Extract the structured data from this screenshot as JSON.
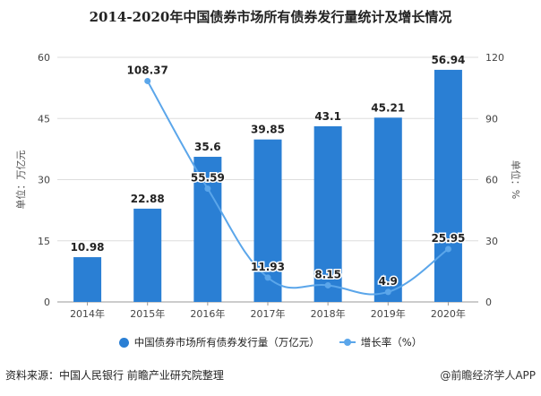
{
  "chart_data": {
    "type": "bar+line",
    "title": "2014-2020年中国债券市场所有债券发行量统计及增长情况",
    "categories": [
      "2014年",
      "2015年",
      "2016年",
      "2017年",
      "2018年",
      "2019年",
      "2020年"
    ],
    "series": [
      {
        "name": "中国债券市场所有债券发行量（万亿元）",
        "type": "bar",
        "axis": "left",
        "values": [
          10.98,
          22.88,
          35.6,
          39.85,
          43.1,
          45.21,
          56.94
        ],
        "labels": [
          "10.98",
          "22.88",
          "35.6",
          "39.85",
          "43.1",
          "45.21",
          "56.94"
        ]
      },
      {
        "name": "增长率（%）",
        "type": "line",
        "axis": "right",
        "smooth": true,
        "values": [
          null,
          108.37,
          55.59,
          11.93,
          8.15,
          4.9,
          25.95
        ],
        "labels": [
          "",
          "108.37",
          "55.59",
          "11.93",
          "8.15",
          "4.9",
          "25.95"
        ]
      }
    ],
    "left_axis": {
      "label": "单位：万亿元",
      "range": [
        0,
        60
      ],
      "ticks": [
        "0",
        "15",
        "30",
        "45",
        "60"
      ]
    },
    "right_axis": {
      "label": "单位：%",
      "range": [
        0,
        120
      ],
      "ticks": [
        "0",
        "30",
        "60",
        "90",
        "120"
      ]
    },
    "grid": true,
    "legend_position": "bottom",
    "colors": {
      "bar": "#2a7fd4",
      "line": "#5ba6ea"
    }
  },
  "footer": {
    "source": "资料来源：中国人民银行 前瞻产业研究院整理",
    "credit": "@前瞻经济学人APP"
  }
}
